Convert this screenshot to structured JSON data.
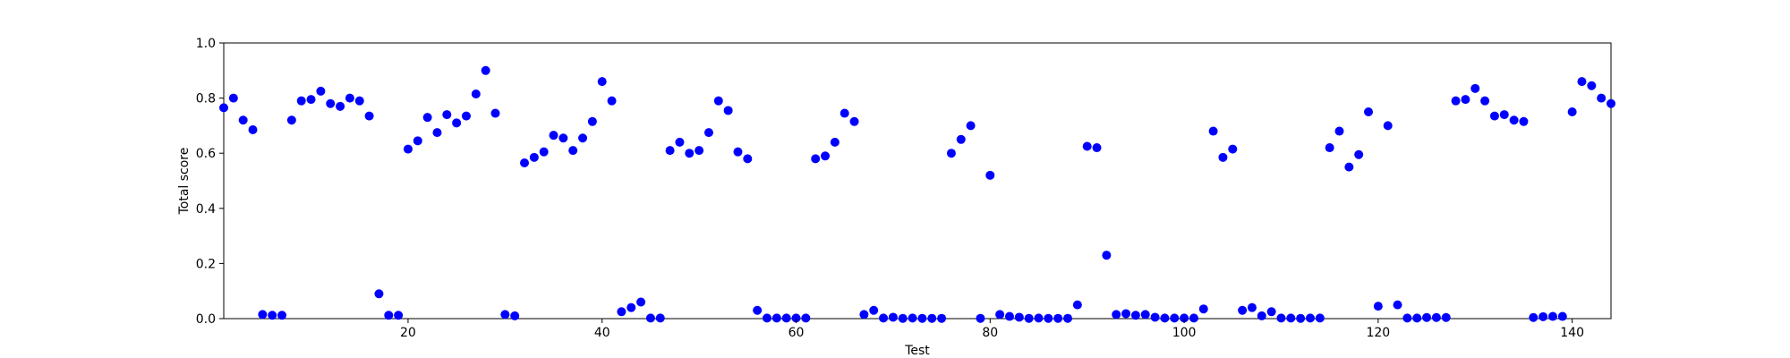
{
  "chart_data": {
    "type": "scatter",
    "title": "",
    "xlabel": "Test",
    "ylabel": "Total score",
    "xlim": [
      1,
      144
    ],
    "ylim": [
      0.0,
      1.0
    ],
    "xticks": [
      20,
      40,
      60,
      80,
      100,
      120,
      140
    ],
    "yticks": [
      0.0,
      0.2,
      0.4,
      0.6,
      0.8,
      1.0
    ],
    "xtick_labels": [
      "20",
      "40",
      "60",
      "80",
      "100",
      "120",
      "140"
    ],
    "ytick_labels": [
      "0.0",
      "0.2",
      "0.4",
      "0.6",
      "0.8",
      "1.0"
    ],
    "grid": false,
    "point_color": "#0000ff",
    "series": [
      {
        "x": [
          1,
          2,
          3,
          4,
          5,
          6,
          7,
          8,
          9,
          10,
          11,
          12,
          13,
          14,
          15,
          16,
          17,
          18,
          19,
          20,
          21,
          22,
          23,
          24,
          25,
          26,
          27,
          28,
          29,
          30,
          31,
          32,
          33,
          34,
          35,
          36,
          37,
          38,
          39,
          40,
          41,
          42,
          43,
          44,
          45,
          46,
          47,
          48,
          49,
          50,
          51,
          52,
          53,
          54,
          55,
          56,
          57,
          58,
          59,
          60,
          61,
          62,
          63,
          64,
          65,
          66,
          67,
          68,
          69,
          70,
          71,
          72,
          73,
          74,
          75,
          76,
          77,
          78,
          79,
          80,
          81,
          82,
          83,
          84,
          85,
          86,
          87,
          88,
          89,
          90,
          91,
          92,
          93,
          94,
          95,
          96,
          97,
          98,
          99,
          100,
          101,
          102,
          103,
          104,
          105,
          106,
          107,
          108,
          109,
          110,
          111,
          112,
          113,
          114,
          115,
          116,
          117,
          118,
          119,
          120,
          121,
          122,
          123,
          124,
          125,
          126,
          127,
          128,
          129,
          130,
          131,
          132,
          133,
          134,
          135,
          136,
          137,
          138,
          139,
          140,
          141,
          142,
          143,
          144
        ],
        "y": [
          0.765,
          0.8,
          0.72,
          0.685,
          0.015,
          0.012,
          0.012,
          0.72,
          0.79,
          0.795,
          0.825,
          0.78,
          0.77,
          0.8,
          0.79,
          0.735,
          0.09,
          0.012,
          0.012,
          0.615,
          0.645,
          0.73,
          0.675,
          0.74,
          0.71,
          0.735,
          0.815,
          0.9,
          0.745,
          0.015,
          0.01,
          0.565,
          0.585,
          0.605,
          0.665,
          0.655,
          0.61,
          0.655,
          0.715,
          0.86,
          0.79,
          0.025,
          0.04,
          0.06,
          0.002,
          0.002,
          0.61,
          0.64,
          0.6,
          0.61,
          0.675,
          0.79,
          0.755,
          0.605,
          0.58,
          0.03,
          0.002,
          0.002,
          0.002,
          0.002,
          0.002,
          0.58,
          0.59,
          0.64,
          0.745,
          0.715,
          0.015,
          0.03,
          0.002,
          0.005,
          0.001,
          0.002,
          0.001,
          0.001,
          0.001,
          0.6,
          0.65,
          0.7,
          0.001,
          0.52,
          0.015,
          0.008,
          0.005,
          0.001,
          0.002,
          0.001,
          0.001,
          0.001,
          0.05,
          0.625,
          0.62,
          0.23,
          0.015,
          0.018,
          0.012,
          0.015,
          0.005,
          0.002,
          0.002,
          0.002,
          0.002,
          0.035,
          0.68,
          0.585,
          0.615,
          0.03,
          0.04,
          0.01,
          0.025,
          0.002,
          0.002,
          0.001,
          0.002,
          0.002,
          0.62,
          0.68,
          0.55,
          0.595,
          0.75,
          0.045,
          0.7,
          0.05,
          0.002,
          0.002,
          0.004,
          0.004,
          0.004,
          0.79,
          0.795,
          0.835,
          0.79,
          0.735,
          0.74,
          0.72,
          0.715,
          0.004,
          0.007,
          0.008,
          0.008,
          0.75,
          0.86,
          0.845,
          0.8,
          0.78
        ]
      }
    ]
  }
}
